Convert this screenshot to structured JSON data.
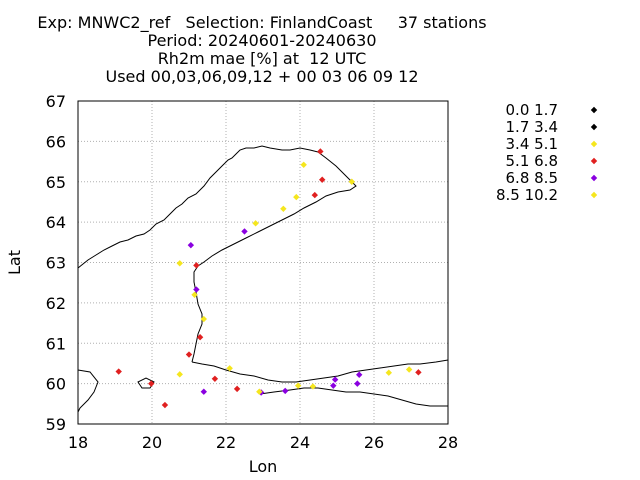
{
  "chart_data": {
    "type": "scatter",
    "title_lines": [
      "Exp: MNWC2_ref   Selection: FinlandCoast     37 stations",
      "Period: 20240601-20240630",
      "Rh2m mae [%] at  12 UTC",
      "Used 00,03,06,09,12 + 00 03 06 09 12"
    ],
    "xlabel": "Lon",
    "ylabel": "Lat",
    "xlim": [
      18,
      28
    ],
    "ylim": [
      59,
      67
    ],
    "xticks": [
      "18",
      "20",
      "22",
      "24",
      "26",
      "28"
    ],
    "yticks": [
      "59",
      "60",
      "61",
      "62",
      "63",
      "64",
      "65",
      "66",
      "67"
    ],
    "grid": true,
    "legend_position": "right",
    "classes": [
      {
        "label": "0.0 1.7",
        "color": "#000000"
      },
      {
        "label": "1.7 3.4",
        "color": "#000000"
      },
      {
        "label": "3.4 5.1",
        "color": "#f5e61e"
      },
      {
        "label": "5.1 6.8",
        "color": "#e02020"
      },
      {
        "label": "6.8 8.5",
        "color": "#8a00e0"
      },
      {
        "label": "8.5 10.2",
        "color": "#f5e61e"
      }
    ],
    "points": [
      {
        "lon": 24.55,
        "lat": 65.75,
        "cls": 3
      },
      {
        "lon": 24.1,
        "lat": 65.42,
        "cls": 2
      },
      {
        "lon": 25.4,
        "lat": 65.0,
        "cls": 2
      },
      {
        "lon": 24.6,
        "lat": 65.05,
        "cls": 3
      },
      {
        "lon": 24.4,
        "lat": 64.67,
        "cls": 3
      },
      {
        "lon": 23.9,
        "lat": 64.62,
        "cls": 2
      },
      {
        "lon": 23.55,
        "lat": 64.33,
        "cls": 2
      },
      {
        "lon": 22.8,
        "lat": 63.97,
        "cls": 2
      },
      {
        "lon": 22.5,
        "lat": 63.77,
        "cls": 4
      },
      {
        "lon": 21.05,
        "lat": 63.43,
        "cls": 4
      },
      {
        "lon": 20.75,
        "lat": 62.98,
        "cls": 2
      },
      {
        "lon": 21.2,
        "lat": 62.93,
        "cls": 3
      },
      {
        "lon": 21.2,
        "lat": 62.33,
        "cls": 4
      },
      {
        "lon": 21.15,
        "lat": 62.2,
        "cls": 2
      },
      {
        "lon": 21.4,
        "lat": 61.6,
        "cls": 2
      },
      {
        "lon": 21.3,
        "lat": 61.15,
        "cls": 3
      },
      {
        "lon": 21.0,
        "lat": 60.72,
        "cls": 3
      },
      {
        "lon": 19.1,
        "lat": 60.3,
        "cls": 3
      },
      {
        "lon": 19.98,
        "lat": 60.0,
        "cls": 3
      },
      {
        "lon": 20.35,
        "lat": 59.47,
        "cls": 3
      },
      {
        "lon": 20.75,
        "lat": 60.23,
        "cls": 2
      },
      {
        "lon": 21.4,
        "lat": 59.8,
        "cls": 4
      },
      {
        "lon": 21.7,
        "lat": 60.12,
        "cls": 3
      },
      {
        "lon": 22.1,
        "lat": 60.38,
        "cls": 2
      },
      {
        "lon": 22.3,
        "lat": 59.87,
        "cls": 3
      },
      {
        "lon": 22.95,
        "lat": 59.78,
        "cls": 4
      },
      {
        "lon": 23.6,
        "lat": 59.82,
        "cls": 4
      },
      {
        "lon": 23.95,
        "lat": 59.95,
        "cls": 2
      },
      {
        "lon": 24.35,
        "lat": 59.93,
        "cls": 2
      },
      {
        "lon": 24.95,
        "lat": 60.1,
        "cls": 4
      },
      {
        "lon": 24.9,
        "lat": 59.95,
        "cls": 4
      },
      {
        "lon": 25.6,
        "lat": 60.22,
        "cls": 4
      },
      {
        "lon": 25.55,
        "lat": 60.0,
        "cls": 4
      },
      {
        "lon": 26.4,
        "lat": 60.27,
        "cls": 2
      },
      {
        "lon": 26.95,
        "lat": 60.35,
        "cls": 2
      },
      {
        "lon": 27.2,
        "lat": 60.28,
        "cls": 3
      },
      {
        "lon": 22.9,
        "lat": 59.8,
        "cls": 2
      }
    ]
  }
}
